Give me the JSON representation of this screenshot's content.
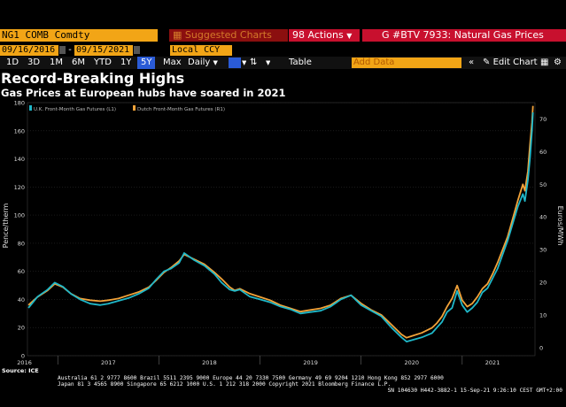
{
  "header": {
    "ticker": "NG1 COMB Comdty",
    "suggested_charts": "Suggested Charts",
    "actions": "Actions",
    "chart_id": "G #BTV 7933: Natural Gas Prices"
  },
  "toolbar": {
    "start_date": "09/16/2016",
    "end_date": "09/15/2021",
    "currency": "Local CCY",
    "ranges": [
      "1D",
      "3D",
      "1M",
      "6M",
      "YTD",
      "1Y",
      "5Y",
      "Max"
    ],
    "selected_range": "5Y",
    "frequency": "Daily",
    "table": "Table",
    "add_data": "Add Data",
    "edit_chart": "Edit Chart"
  },
  "title": "Record-Breaking Highs",
  "subtitle": "Gas Prices at European hubs have soared in 2021",
  "source": "Source: ICE",
  "footer": {
    "line1": "Australia 61 2 9777 8600 Brazil 5511 2395 9000 Europe 44 20 7330 7500 Germany 49 69 9204 1210 Hong Kong 852 2977 6000",
    "line2": "Japan 81 3 4565 8900       Singapore 65 6212 1000      U.S. 1 212 318 2000            Copyright 2021 Bloomberg Finance L.P.",
    "line3": "SN 104630 H442-3882-1 15-Sep-21  9:26:10 CEST GMT+2:00"
  },
  "colors": {
    "uk_series": "#1fb8c9",
    "dutch_series": "#f2a33a",
    "accent_orange": "#f2a516",
    "header_red": "#c8102e"
  },
  "chart_data": {
    "type": "line",
    "legend_position": "top-left",
    "ylabel_left": "Pence/therm",
    "ylabel_right": "Euros/MWh",
    "ylim_left": [
      0,
      180
    ],
    "ylim_right": [
      -2.5,
      75
    ],
    "yticks_left": [
      0,
      20,
      40,
      60,
      80,
      100,
      120,
      140,
      160,
      180
    ],
    "yticks_right": [
      0,
      10,
      20,
      30,
      40,
      50,
      60,
      70
    ],
    "x_tick_labels": [
      "2016",
      "2017",
      "2018",
      "2019",
      "2020",
      "2021"
    ],
    "x_tick_positions": [
      2016.67,
      2017.5,
      2018.5,
      2019.5,
      2020.5,
      2021.3
    ],
    "xlim": [
      2016.7,
      2021.72
    ],
    "series": [
      {
        "name": "U.K. Front-Month Gas Futures (L1)",
        "axis": "left",
        "x": [
          2016.71,
          2016.8,
          2016.9,
          2016.97,
          2017.05,
          2017.13,
          2017.22,
          2017.32,
          2017.42,
          2017.5,
          2017.6,
          2017.7,
          2017.8,
          2017.9,
          2017.97,
          2018.05,
          2018.12,
          2018.2,
          2018.25,
          2018.35,
          2018.45,
          2018.55,
          2018.62,
          2018.7,
          2018.75,
          2018.8,
          2018.9,
          2019.0,
          2019.1,
          2019.2,
          2019.3,
          2019.4,
          2019.5,
          2019.6,
          2019.7,
          2019.8,
          2019.9,
          2020.0,
          2020.1,
          2020.2,
          2020.3,
          2020.4,
          2020.45,
          2020.5,
          2020.6,
          2020.7,
          2020.75,
          2020.8,
          2020.85,
          2020.9,
          2020.95,
          2021.0,
          2021.05,
          2021.1,
          2021.15,
          2021.2,
          2021.25,
          2021.3,
          2021.35,
          2021.4,
          2021.45,
          2021.5,
          2021.55,
          2021.6,
          2021.62,
          2021.65,
          2021.67,
          2021.69,
          2021.7
        ],
        "values": [
          34,
          42,
          47,
          52,
          49,
          44,
          40,
          37,
          36,
          37,
          39,
          41,
          44,
          48,
          54,
          60,
          62,
          66,
          73,
          68,
          64,
          58,
          52,
          47,
          46,
          47,
          42,
          40,
          38,
          35,
          33,
          30,
          31,
          32,
          35,
          40,
          43,
          36,
          32,
          28,
          20,
          13,
          10,
          11,
          13,
          16,
          20,
          24,
          31,
          34,
          46,
          36,
          31,
          34,
          38,
          45,
          48,
          55,
          62,
          72,
          82,
          94,
          106,
          115,
          110,
          125,
          140,
          160,
          173
        ]
      },
      {
        "name": "Dutch Front-Month Gas Futures (R1)",
        "axis": "right",
        "x": [
          2016.71,
          2016.8,
          2016.9,
          2016.97,
          2017.05,
          2017.13,
          2017.22,
          2017.32,
          2017.42,
          2017.5,
          2017.6,
          2017.7,
          2017.8,
          2017.9,
          2017.97,
          2018.05,
          2018.12,
          2018.2,
          2018.25,
          2018.35,
          2018.45,
          2018.55,
          2018.62,
          2018.7,
          2018.75,
          2018.8,
          2018.9,
          2019.0,
          2019.1,
          2019.2,
          2019.3,
          2019.4,
          2019.5,
          2019.6,
          2019.7,
          2019.8,
          2019.9,
          2020.0,
          2020.1,
          2020.2,
          2020.3,
          2020.4,
          2020.45,
          2020.5,
          2020.6,
          2020.7,
          2020.75,
          2020.8,
          2020.85,
          2020.9,
          2020.95,
          2021.0,
          2021.05,
          2021.1,
          2021.15,
          2021.2,
          2021.25,
          2021.3,
          2021.35,
          2021.4,
          2021.45,
          2021.5,
          2021.55,
          2021.6,
          2021.62,
          2021.65,
          2021.67,
          2021.69,
          2021.7
        ],
        "values": [
          13,
          15.5,
          17.5,
          19.5,
          18.5,
          16.5,
          15,
          14.5,
          14.2,
          14.5,
          15,
          16,
          17,
          18.5,
          20.5,
          23,
          24.5,
          26.5,
          28.5,
          27,
          25.5,
          23,
          21,
          18.5,
          17.5,
          18,
          16.5,
          15.5,
          14.5,
          13,
          12,
          11,
          11.5,
          12,
          13,
          15,
          16,
          13.5,
          11.5,
          10,
          7,
          4,
          3,
          3.5,
          4.5,
          6,
          7.5,
          9.5,
          12.5,
          15,
          19,
          14.5,
          12.5,
          13.5,
          15.5,
          18,
          19.5,
          22.5,
          26,
          30,
          34,
          39.5,
          45,
          50,
          48,
          54,
          62,
          69,
          74
        ]
      }
    ]
  }
}
